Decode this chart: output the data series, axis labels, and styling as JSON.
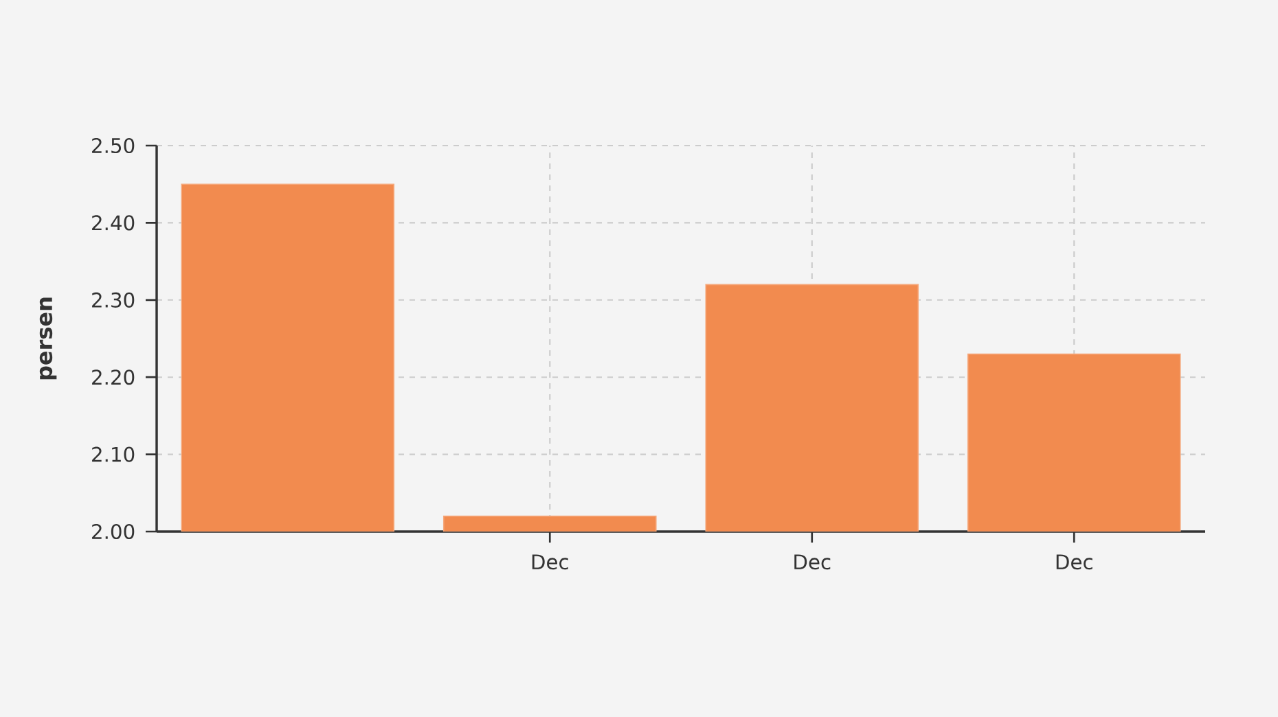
{
  "chart_data": {
    "type": "bar",
    "ylabel": "persen",
    "categories": [
      null,
      "Dec",
      "Dec",
      "Dec"
    ],
    "values": [
      2.45,
      2.02,
      2.32,
      2.23
    ],
    "color": "#f28b4f",
    "ylim": [
      2.0,
      2.5
    ],
    "yticks": [
      {
        "value": 2.0,
        "label": "2.00"
      },
      {
        "value": 2.1,
        "label": "2.10"
      },
      {
        "value": 2.2,
        "label": "2.20"
      },
      {
        "value": 2.3,
        "label": "2.30"
      },
      {
        "value": 2.4,
        "label": "2.40"
      },
      {
        "value": 2.5,
        "label": "2.50"
      }
    ],
    "grid": true
  }
}
